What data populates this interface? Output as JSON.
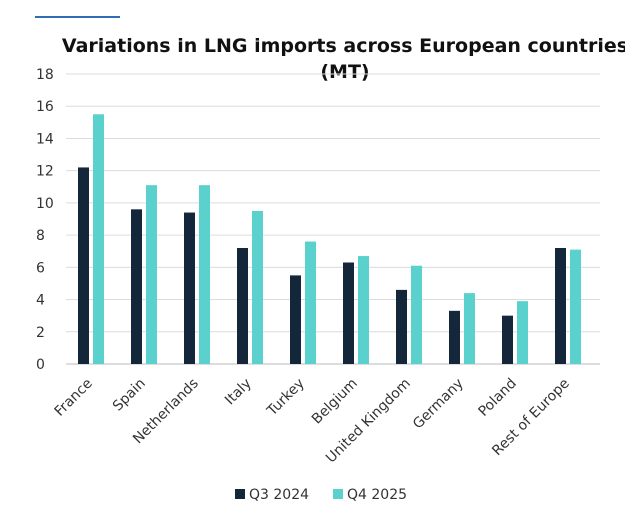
{
  "chart_data": {
    "type": "bar",
    "title_lines": [
      "Variations in LNG imports across European countries",
      "(MT)"
    ],
    "xlabel": "",
    "ylabel": "",
    "ylim": [
      0,
      18
    ],
    "yticks": [
      0,
      2,
      4,
      6,
      8,
      10,
      12,
      14,
      16,
      18
    ],
    "grid": true,
    "legend_position": "bottom-center",
    "categories": [
      "France",
      "Spain",
      "Netherlands",
      "Italy",
      "Turkey",
      "Belgium",
      "United Kingdom",
      "Germany",
      "Poland",
      "Rest of Europe"
    ],
    "series": [
      {
        "name": "Q3 2024",
        "color": "#13263a",
        "values": [
          12.2,
          9.6,
          9.4,
          7.2,
          5.5,
          6.3,
          4.6,
          3.3,
          3.0,
          7.2
        ]
      },
      {
        "name": "Q4 2025",
        "color": "#5ad1cc",
        "values": [
          15.5,
          11.1,
          11.1,
          9.5,
          7.6,
          6.7,
          6.1,
          4.4,
          3.9,
          7.1
        ]
      }
    ]
  },
  "colors": {
    "accent_line": "#2f6db5",
    "grid": "#dcdcdc",
    "text": "#333333"
  }
}
